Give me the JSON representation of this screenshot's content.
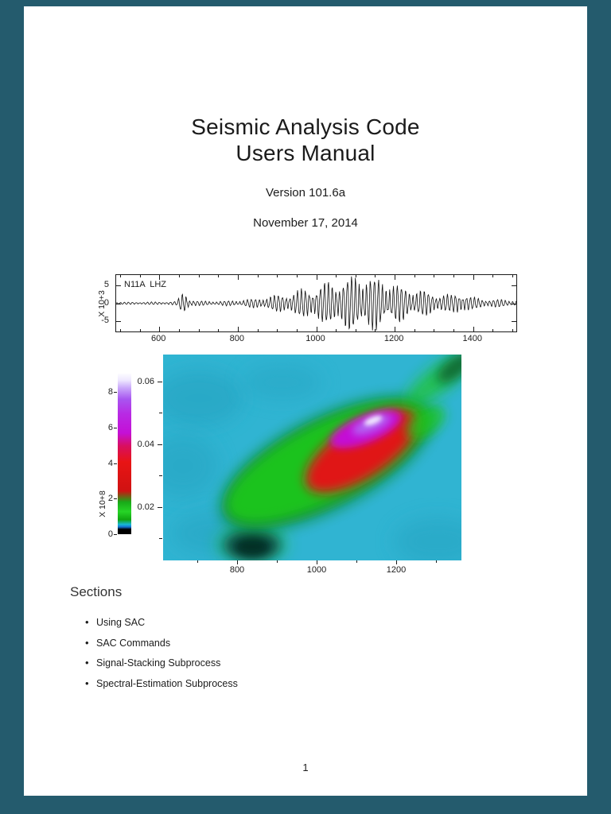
{
  "colors": {
    "viewer-bg": "#245b6d",
    "page-bg": "#ffffff",
    "ink": "#1c1c1c",
    "spec-cyan": "#30b4d2",
    "spec-cyan-dark": "#28a5c3",
    "blob-green-dark": "#0d8516",
    "blob-green": "#1ec61e",
    "blob-red": "#e01313",
    "blob-magenta": "#c410d6",
    "blob-purple": "#b06df5",
    "blob-white": "#f2ecff",
    "blob-teal-dark": "#0b4f46",
    "blob-teal-core": "#06251f",
    "corner-green-dark": "#0c5e2e"
  },
  "title": {
    "line1": "Seismic Analysis Code",
    "line2": "Users Manual",
    "version": "Version 101.6a",
    "date": "November 17, 2014"
  },
  "chart_data": [
    {
      "type": "line",
      "name": "seismogram",
      "station_label": "N11A  LHZ",
      "ylabel": "X 10+3",
      "yticks": [
        {
          "v": 5,
          "label": "5"
        },
        {
          "v": 0,
          "label": "0"
        },
        {
          "v": -5,
          "label": "-5"
        }
      ],
      "xticks": [
        600,
        800,
        1000,
        1200,
        1400
      ],
      "xlim": [
        490,
        1510
      ],
      "ylim": [
        -8,
        8
      ],
      "envelope": [
        [
          490,
          0.25
        ],
        [
          560,
          0.3
        ],
        [
          615,
          0.35
        ],
        [
          645,
          0.45
        ],
        [
          658,
          2.6
        ],
        [
          668,
          2.9
        ],
        [
          678,
          1.0
        ],
        [
          700,
          0.55
        ],
        [
          750,
          0.5
        ],
        [
          800,
          0.7
        ],
        [
          840,
          1.1
        ],
        [
          880,
          1.7
        ],
        [
          920,
          2.4
        ],
        [
          960,
          3.3
        ],
        [
          1000,
          4.4
        ],
        [
          1040,
          5.4
        ],
        [
          1080,
          6.4
        ],
        [
          1110,
          6.9
        ],
        [
          1140,
          6.8
        ],
        [
          1170,
          5.8
        ],
        [
          1200,
          4.8
        ],
        [
          1230,
          4.0
        ],
        [
          1260,
          3.3
        ],
        [
          1290,
          2.8
        ],
        [
          1320,
          2.3
        ],
        [
          1345,
          2.0
        ],
        [
          1362,
          3.1
        ],
        [
          1375,
          2.7
        ],
        [
          1395,
          1.5
        ],
        [
          1430,
          1.1
        ],
        [
          1470,
          0.9
        ],
        [
          1510,
          0.75
        ]
      ],
      "synthesis": {
        "periods": [
          9.8,
          11.6,
          4.6
        ],
        "weights": [
          0.8,
          0.3,
          0.18
        ],
        "phases": [
          0.4,
          1.7,
          0.9
        ]
      }
    },
    {
      "type": "heatmap",
      "name": "spectrogram",
      "colorbar_label": "X 10+8",
      "colorbar_ticks": [
        0,
        2,
        4,
        6,
        8
      ],
      "colorbar_range": [
        0,
        9.05
      ],
      "colorbar_ramp": [
        "#000000 0%",
        "#000000 3%",
        "#1470d0 4.5%",
        "#18b8d8 6%",
        "#10a410 9%",
        "#26d426 14%",
        "#18aa18 20%",
        "#d01212 27%",
        "#e81414 45%",
        "#d80f60 55%",
        "#c410d6 63%",
        "#b82ae4 75%",
        "#a855f0 84%",
        "#c9a6fa 91%",
        "#efe9ff 96%",
        "#fcfbff 100%"
      ],
      "xticks": [
        800,
        1000,
        1200
      ],
      "xminor": [
        700,
        900,
        1100,
        1300
      ],
      "yticks": [
        {
          "v": 0.02,
          "label": "0.02"
        },
        {
          "v": 0.04,
          "label": "0.04"
        },
        {
          "v": 0.06,
          "label": "0.06"
        }
      ],
      "yminor": [
        0.01,
        0.03,
        0.05
      ],
      "xlim": [
        614,
        1364
      ],
      "ylim": [
        0.003,
        0.0685
      ]
    }
  ],
  "sections": {
    "heading": "Sections",
    "items": [
      "Using SAC",
      "SAC Commands",
      "Signal-Stacking Subprocess",
      "Spectral-Estimation Subprocess"
    ]
  },
  "footer": {
    "page_number": "1"
  }
}
